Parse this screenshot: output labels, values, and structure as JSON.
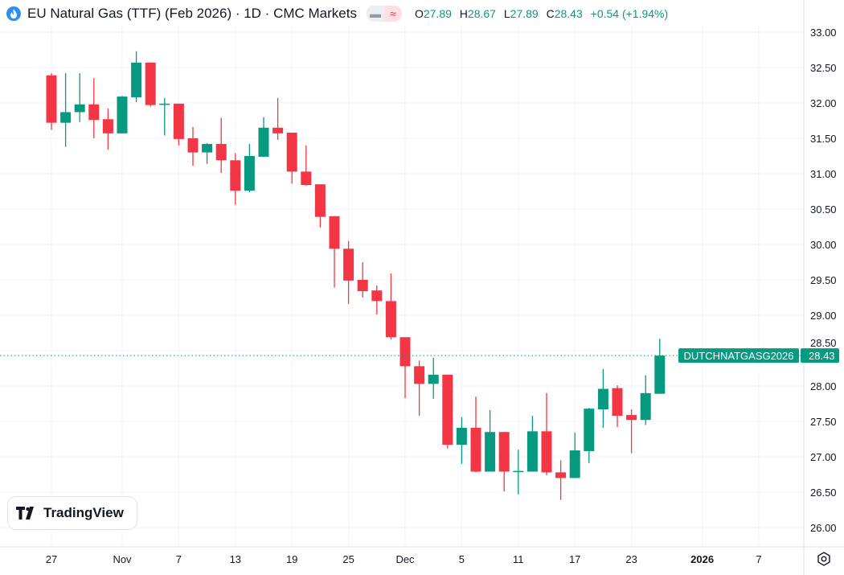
{
  "header": {
    "title": "EU Natural Gas (TTF) (Feb 2026) · 1D · CMC Markets",
    "icon": "flame-icon",
    "ohlc": {
      "o_label": "O",
      "o": "27.89",
      "h_label": "H",
      "h": "28.67",
      "l_label": "L",
      "l": "27.89",
      "c_label": "C",
      "c": "28.43",
      "change": "+0.54 (+1.94%)"
    }
  },
  "logo": {
    "text": "TradingView"
  },
  "colors": {
    "up": "#089981",
    "down": "#f23645",
    "grid": "#f0f3fa"
  },
  "chart_data": {
    "type": "candlestick",
    "title": "EU Natural Gas (TTF) (Feb 2026) · 1D · CMC Markets",
    "ylim": [
      25.8,
      33.1
    ],
    "y_ticks": [
      "26.00",
      "26.50",
      "27.00",
      "27.50",
      "28.00",
      "28.50",
      "29.00",
      "29.50",
      "30.00",
      "30.50",
      "31.00",
      "31.50",
      "32.00",
      "32.50",
      "33.00"
    ],
    "x_ticks": [
      {
        "i": 0,
        "label": "27"
      },
      {
        "i": 5,
        "label": "Nov"
      },
      {
        "i": 9,
        "label": "7"
      },
      {
        "i": 13,
        "label": "13"
      },
      {
        "i": 17,
        "label": "19"
      },
      {
        "i": 21,
        "label": "25"
      },
      {
        "i": 25,
        "label": "Dec"
      },
      {
        "i": 29,
        "label": "5"
      },
      {
        "i": 33,
        "label": "11"
      },
      {
        "i": 37,
        "label": "17"
      },
      {
        "i": 41,
        "label": "23"
      },
      {
        "i": 46,
        "label": "2026"
      },
      {
        "i": 50,
        "label": "7"
      }
    ],
    "ohlc": [
      [
        32.39,
        32.42,
        31.62,
        31.72
      ],
      [
        31.72,
        32.42,
        31.38,
        31.87
      ],
      [
        31.87,
        32.42,
        31.73,
        31.98
      ],
      [
        31.98,
        32.35,
        31.5,
        31.76
      ],
      [
        31.77,
        31.92,
        31.34,
        31.57
      ],
      [
        31.57,
        32.1,
        31.57,
        32.09
      ],
      [
        32.08,
        32.73,
        32.01,
        32.57
      ],
      [
        32.57,
        32.57,
        31.95,
        31.97
      ],
      [
        31.99,
        32.07,
        31.54,
        31.99
      ],
      [
        31.99,
        31.99,
        31.4,
        31.49
      ],
      [
        31.5,
        31.66,
        31.11,
        31.3
      ],
      [
        31.3,
        31.43,
        31.14,
        31.42
      ],
      [
        31.42,
        31.79,
        31.01,
        31.19
      ],
      [
        31.19,
        31.29,
        30.56,
        30.76
      ],
      [
        30.76,
        31.42,
        30.74,
        31.25
      ],
      [
        31.24,
        31.8,
        31.24,
        31.65
      ],
      [
        31.65,
        32.07,
        31.48,
        31.57
      ],
      [
        31.58,
        31.58,
        30.86,
        31.03
      ],
      [
        31.03,
        31.4,
        30.83,
        30.84
      ],
      [
        30.85,
        30.85,
        30.24,
        30.39
      ],
      [
        30.4,
        30.4,
        29.39,
        29.94
      ],
      [
        29.94,
        30.05,
        29.16,
        29.49
      ],
      [
        29.5,
        29.75,
        29.25,
        29.34
      ],
      [
        29.35,
        29.42,
        29.01,
        29.2
      ],
      [
        29.2,
        29.59,
        28.66,
        28.69
      ],
      [
        28.69,
        28.69,
        27.83,
        28.28
      ],
      [
        28.28,
        28.36,
        27.58,
        28.03
      ],
      [
        28.03,
        28.4,
        27.82,
        28.16
      ],
      [
        28.16,
        28.16,
        27.12,
        27.17
      ],
      [
        27.17,
        27.56,
        26.9,
        27.41
      ],
      [
        27.41,
        27.85,
        26.78,
        26.79
      ],
      [
        26.79,
        27.66,
        26.79,
        27.35
      ],
      [
        27.35,
        27.35,
        26.51,
        26.79
      ],
      [
        26.8,
        27.1,
        26.47,
        26.8
      ],
      [
        26.79,
        27.58,
        26.79,
        27.36
      ],
      [
        27.36,
        27.9,
        26.74,
        26.78
      ],
      [
        26.78,
        26.95,
        26.39,
        26.7
      ],
      [
        26.7,
        27.34,
        26.7,
        27.09
      ],
      [
        27.08,
        27.69,
        26.91,
        27.68
      ],
      [
        27.67,
        28.24,
        27.41,
        27.96
      ],
      [
        27.97,
        28.01,
        27.42,
        27.58
      ],
      [
        27.59,
        27.67,
        27.05,
        27.52
      ],
      [
        27.52,
        28.15,
        27.45,
        27.9
      ],
      [
        27.89,
        28.67,
        27.89,
        28.43
      ]
    ],
    "last_price": {
      "symbol": "DUTCHNATGASG2026",
      "value": "28.43"
    }
  }
}
